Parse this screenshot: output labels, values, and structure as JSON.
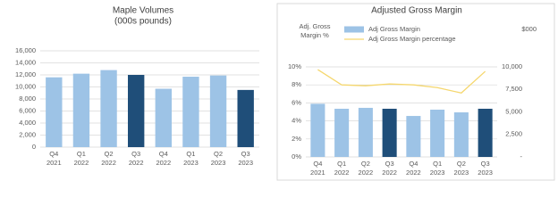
{
  "chart_data": [
    {
      "type": "bar",
      "title": "Maple Volumes",
      "subtitle": "(000s pounds)",
      "categories": [
        "Q4 2021",
        "Q1 2022",
        "Q2 2022",
        "Q3 2022",
        "Q4 2022",
        "Q1 2023",
        "Q2 2023",
        "Q3 2023"
      ],
      "series": [
        {
          "values": [
            11600,
            12200,
            12800,
            12000,
            9700,
            11700,
            11900,
            9500
          ],
          "colors": [
            "#9dc3e6",
            "#9dc3e6",
            "#9dc3e6",
            "#1f4e79",
            "#9dc3e6",
            "#9dc3e6",
            "#9dc3e6",
            "#1f4e79"
          ]
        }
      ],
      "ylim": [
        0,
        16000
      ],
      "yticks": [
        0,
        {
          "value": 2000,
          "label": "2,000"
        },
        {
          "value": 4000,
          "label": "4,000"
        },
        {
          "value": 6000,
          "label": "6,000"
        },
        {
          "value": 8000,
          "label": "8,000"
        },
        {
          "value": 10000,
          "label": "10,000"
        },
        {
          "value": 12000,
          "label": "12,000"
        },
        {
          "value": 14000,
          "label": "14,000"
        },
        {
          "value": 16000,
          "label": "16,000"
        }
      ],
      "grid": true
    },
    {
      "type": "bar-line",
      "title": "Adjusted Gross Margin",
      "ylabel": "Adj. Gross Margin %",
      "y2label": "$000",
      "categories": [
        "Q4 2021",
        "Q1 2022",
        "Q2 2022",
        "Q3 2022",
        "Q4 2022",
        "Q1 2023",
        "Q2 2023",
        "Q3 2023"
      ],
      "series": [
        {
          "name": "Adj Gross Margin",
          "type": "bar",
          "axis": "y2",
          "color": "#9dc3e6",
          "values": [
            5900,
            5350,
            5450,
            5350,
            4550,
            5250,
            4950,
            5350
          ],
          "colors": [
            "#9dc3e6",
            "#9dc3e6",
            "#9dc3e6",
            "#1f4e79",
            "#9dc3e6",
            "#9dc3e6",
            "#9dc3e6",
            "#1f4e79"
          ]
        },
        {
          "name": "Adj Gross Margin percentage",
          "type": "line",
          "color": "#f5d76e",
          "values": [
            9.7,
            8.0,
            7.9,
            8.1,
            8.0,
            7.7,
            7.1,
            9.5
          ]
        }
      ],
      "ylim": [
        0,
        10
      ],
      "yticks": [
        {
          "value": 0,
          "label": "0%"
        },
        {
          "value": 2,
          "label": "2%"
        },
        {
          "value": 4,
          "label": "4%"
        },
        {
          "value": 6,
          "label": "6%"
        },
        {
          "value": 8,
          "label": "8%"
        },
        {
          "value": 10,
          "label": "10%"
        }
      ],
      "y2lim": [
        0,
        10000
      ],
      "y2ticks": [
        {
          "value": 0,
          "label": "-"
        },
        {
          "value": 2500,
          "label": "2,500"
        },
        {
          "value": 5000,
          "label": "5,000"
        },
        {
          "value": 7500,
          "label": "7,500"
        },
        {
          "value": 10000,
          "label": "10,000"
        }
      ],
      "grid": true,
      "legend": "top"
    }
  ]
}
